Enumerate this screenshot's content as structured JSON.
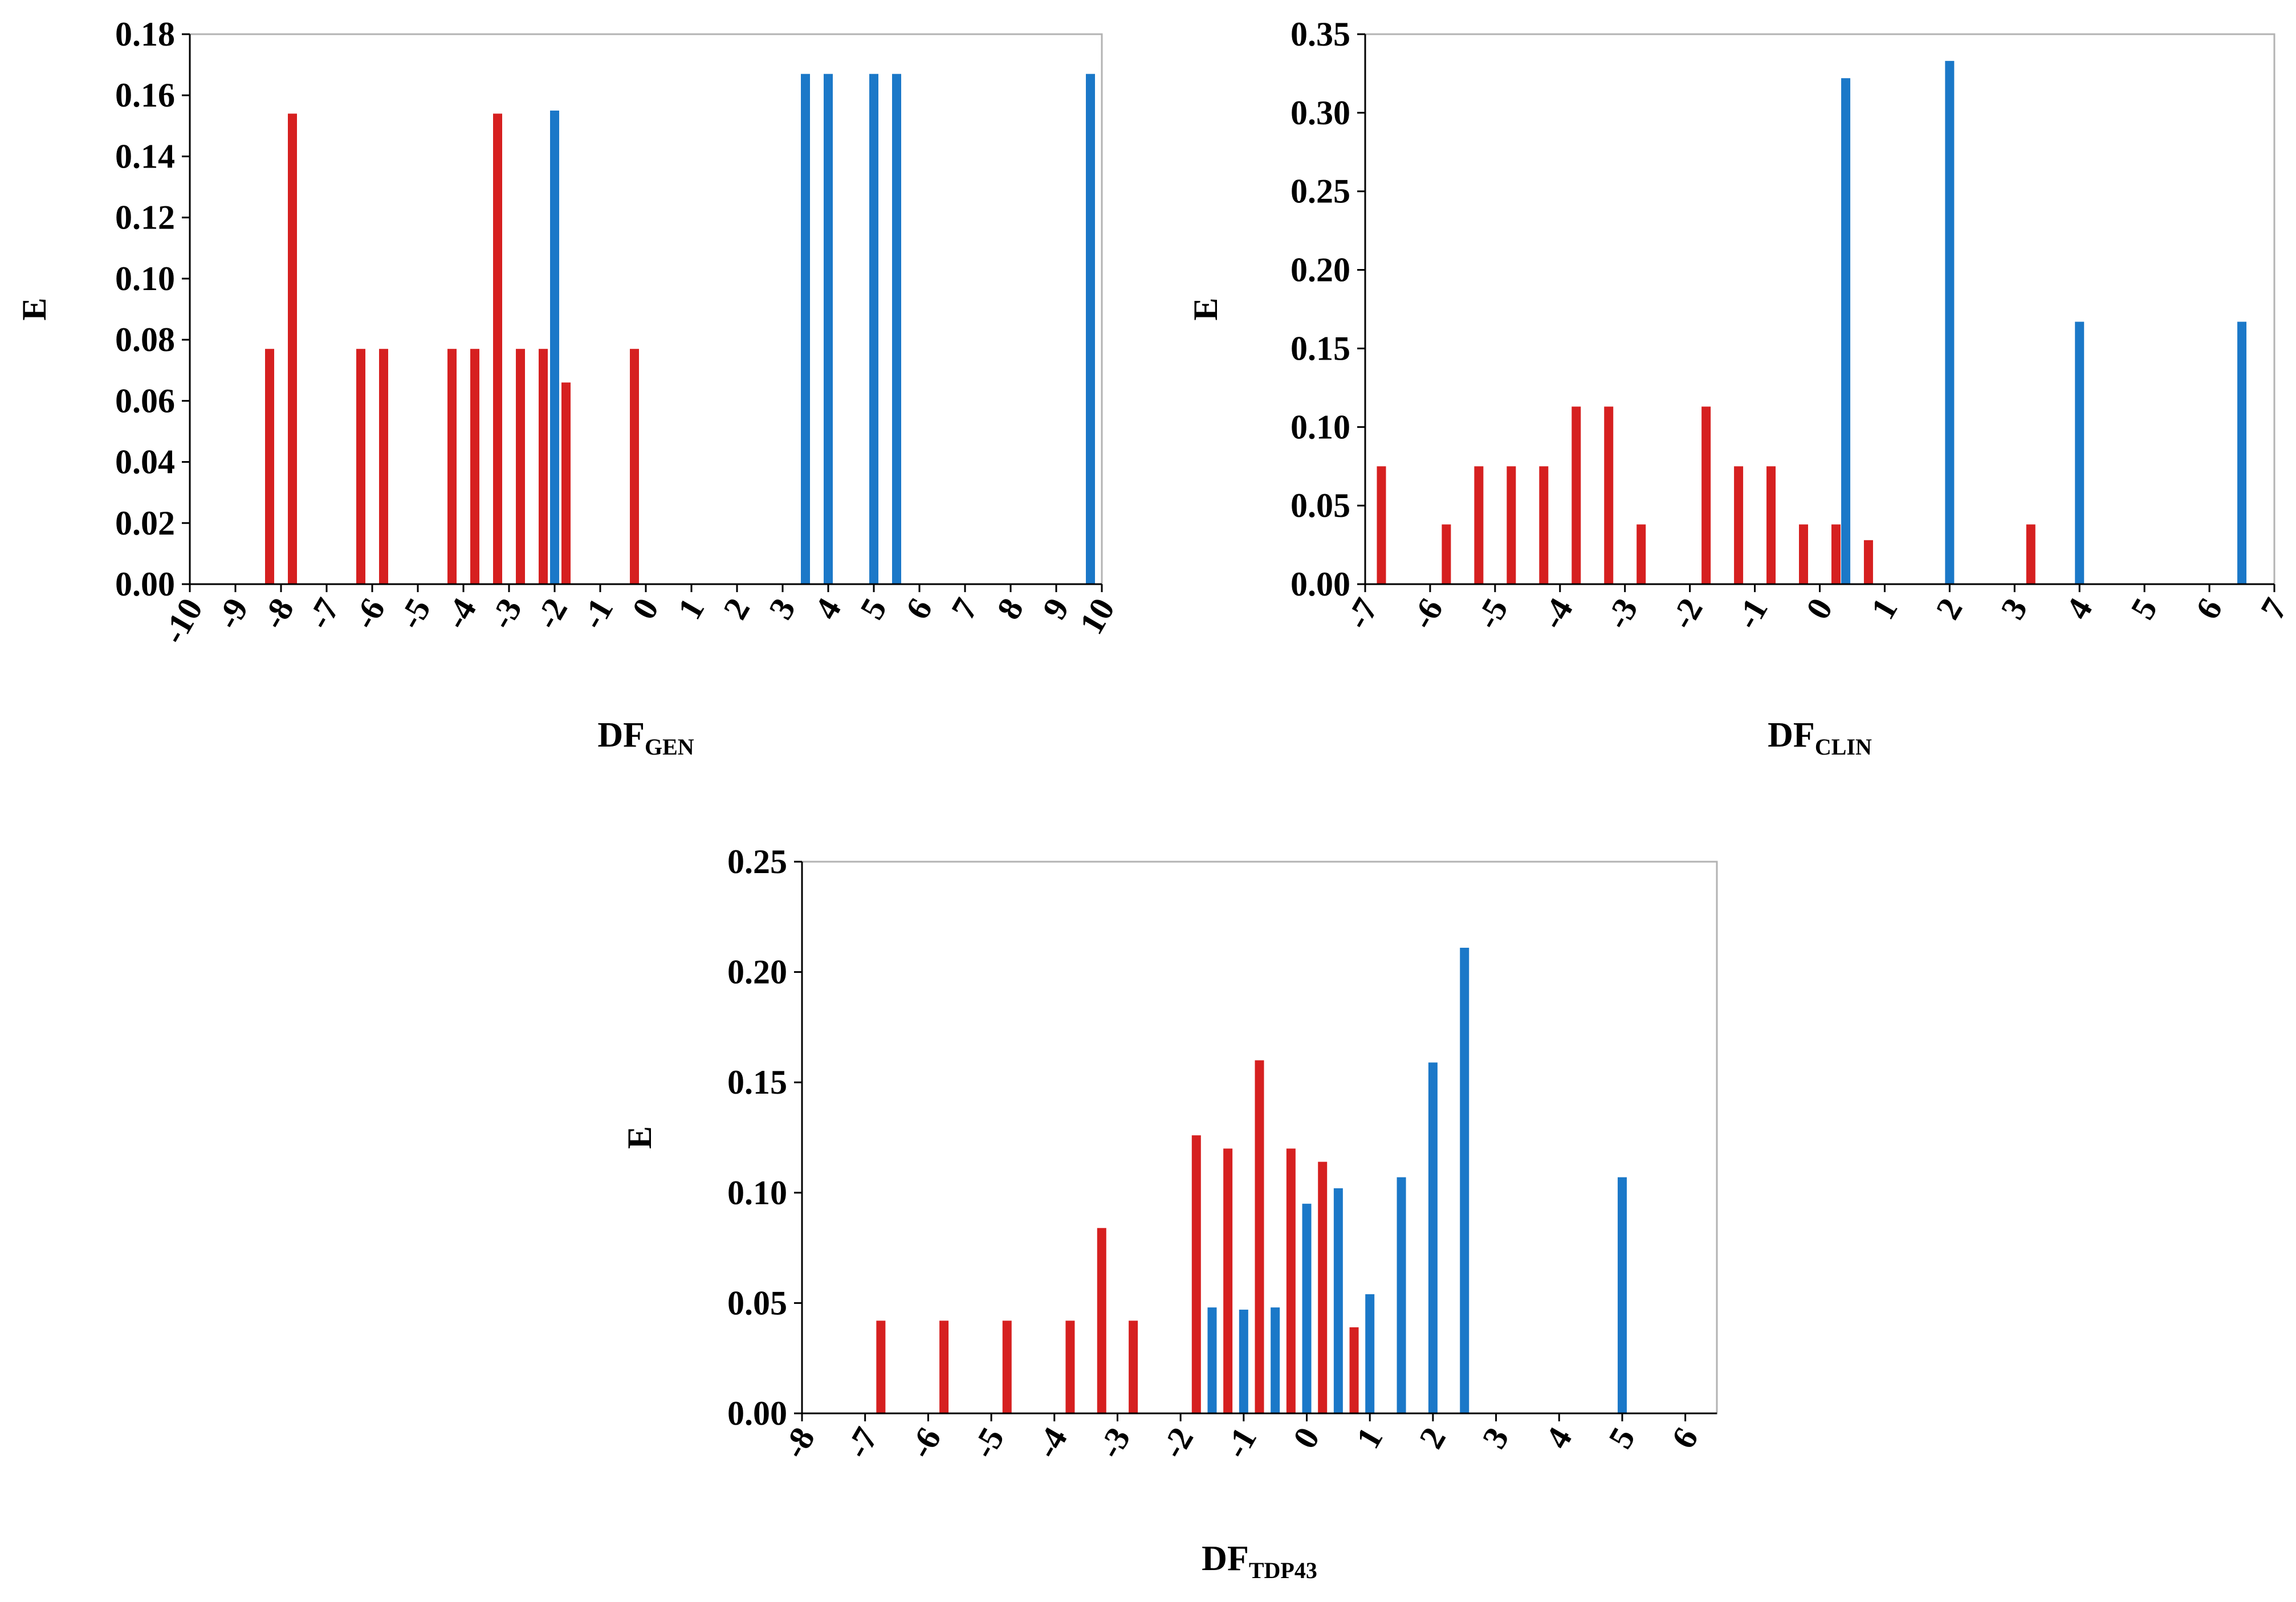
{
  "colors": {
    "red": "#d62020",
    "blue": "#1b78c8",
    "axis": "#000000",
    "frame": "#b3b3b3"
  },
  "chart_data": [
    {
      "type": "bar",
      "ylabel": "E",
      "xlabel_main": "DF",
      "xlabel_sub": "GEN",
      "ylim": [
        0,
        0.18
      ],
      "yticks": [
        0.0,
        0.02,
        0.04,
        0.06,
        0.08,
        0.1,
        0.12,
        0.14,
        0.16,
        0.18
      ],
      "ytick_labels": [
        "0.00",
        "0.02",
        "0.04",
        "0.06",
        "0.08",
        "0.10",
        "0.12",
        "0.14",
        "0.16",
        "0.18"
      ],
      "xlim": [
        -10,
        10
      ],
      "xticks": [
        -10,
        -9,
        -8,
        -7,
        -6,
        -5,
        -4,
        -3,
        -2,
        -1,
        0,
        1,
        2,
        3,
        4,
        5,
        6,
        7,
        8,
        9,
        10
      ],
      "xtick_labels": [
        "-10",
        "-9",
        "-8",
        "-7",
        "-6",
        "-5",
        "-4",
        "-3",
        "-2",
        "-1",
        "0",
        "1",
        "2",
        "3",
        "4",
        "5",
        "6",
        "7",
        "8",
        "9",
        "10"
      ],
      "series": [
        {
          "name": "red",
          "points": [
            [
              -8.25,
              0.077
            ],
            [
              -7.75,
              0.154
            ],
            [
              -6.25,
              0.077
            ],
            [
              -5.75,
              0.077
            ],
            [
              -4.25,
              0.077
            ],
            [
              -3.75,
              0.077
            ],
            [
              -3.25,
              0.154
            ],
            [
              -2.75,
              0.077
            ],
            [
              -2.25,
              0.077
            ],
            [
              -1.75,
              0.066
            ],
            [
              -0.25,
              0.077
            ]
          ]
        },
        {
          "name": "blue",
          "points": [
            [
              -2.0,
              0.155
            ],
            [
              3.5,
              0.167
            ],
            [
              4.0,
              0.167
            ],
            [
              5.0,
              0.167
            ],
            [
              5.5,
              0.167
            ],
            [
              9.75,
              0.167
            ]
          ]
        }
      ]
    },
    {
      "type": "bar",
      "ylabel": "E",
      "xlabel_main": "DF",
      "xlabel_sub": "CLIN",
      "ylim": [
        0,
        0.35
      ],
      "yticks": [
        0.0,
        0.05,
        0.1,
        0.15,
        0.2,
        0.25,
        0.3,
        0.35
      ],
      "ytick_labels": [
        "0.00",
        "0.05",
        "0.10",
        "0.15",
        "0.20",
        "0.25",
        "0.30",
        "0.35"
      ],
      "xlim": [
        -7,
        7
      ],
      "xticks": [
        -7,
        -6,
        -5,
        -4,
        -3,
        -2,
        -1,
        0,
        1,
        2,
        3,
        4,
        5,
        6,
        7
      ],
      "xtick_labels": [
        "-7",
        "-6",
        "-5",
        "-4",
        "-3",
        "-2",
        "-1",
        "0",
        "1",
        "2",
        "3",
        "4",
        "5",
        "6",
        "7"
      ],
      "series": [
        {
          "name": "red",
          "points": [
            [
              -6.75,
              0.075
            ],
            [
              -5.75,
              0.038
            ],
            [
              -5.25,
              0.075
            ],
            [
              -4.75,
              0.075
            ],
            [
              -4.25,
              0.075
            ],
            [
              -3.75,
              0.113
            ],
            [
              -3.25,
              0.113
            ],
            [
              -2.75,
              0.038
            ],
            [
              -1.75,
              0.113
            ],
            [
              -1.25,
              0.075
            ],
            [
              -0.75,
              0.075
            ],
            [
              -0.25,
              0.038
            ],
            [
              0.25,
              0.038
            ],
            [
              0.75,
              0.028
            ],
            [
              3.25,
              0.038
            ]
          ]
        },
        {
          "name": "blue",
          "points": [
            [
              0.4,
              0.322
            ],
            [
              2.0,
              0.333
            ],
            [
              4.0,
              0.167
            ],
            [
              6.5,
              0.167
            ]
          ]
        }
      ]
    },
    {
      "type": "bar",
      "ylabel": "E",
      "xlabel_main": "DF",
      "xlabel_sub": "TDP43",
      "ylim": [
        0,
        0.25
      ],
      "yticks": [
        0.0,
        0.05,
        0.1,
        0.15,
        0.2,
        0.25
      ],
      "ytick_labels": [
        "0.00",
        "0.05",
        "0.10",
        "0.15",
        "0.20",
        "0.25"
      ],
      "xlim": [
        -8,
        6.5
      ],
      "xticks": [
        -8,
        -7,
        -6,
        -5,
        -4,
        -3,
        -2,
        -1,
        0,
        1,
        2,
        3,
        4,
        5,
        6
      ],
      "xtick_labels": [
        "-8",
        "-7",
        "-6",
        "-5",
        "-4",
        "-3",
        "-2",
        "-1",
        "0",
        "1",
        "2",
        "3",
        "4",
        "5",
        "6"
      ],
      "series": [
        {
          "name": "red",
          "points": [
            [
              -6.75,
              0.042
            ],
            [
              -5.75,
              0.042
            ],
            [
              -4.75,
              0.042
            ],
            [
              -3.75,
              0.042
            ],
            [
              -3.25,
              0.084
            ],
            [
              -2.75,
              0.042
            ],
            [
              -1.75,
              0.126
            ],
            [
              -1.25,
              0.12
            ],
            [
              -0.75,
              0.16
            ],
            [
              -0.25,
              0.12
            ],
            [
              0.25,
              0.114
            ],
            [
              0.75,
              0.039
            ]
          ]
        },
        {
          "name": "blue",
          "points": [
            [
              -1.5,
              0.048
            ],
            [
              -1.0,
              0.047
            ],
            [
              -0.5,
              0.048
            ],
            [
              0.0,
              0.095
            ],
            [
              0.5,
              0.102
            ],
            [
              1.0,
              0.054
            ],
            [
              1.5,
              0.107
            ],
            [
              2.0,
              0.159
            ],
            [
              2.5,
              0.211
            ],
            [
              5.0,
              0.107
            ]
          ]
        }
      ]
    }
  ]
}
